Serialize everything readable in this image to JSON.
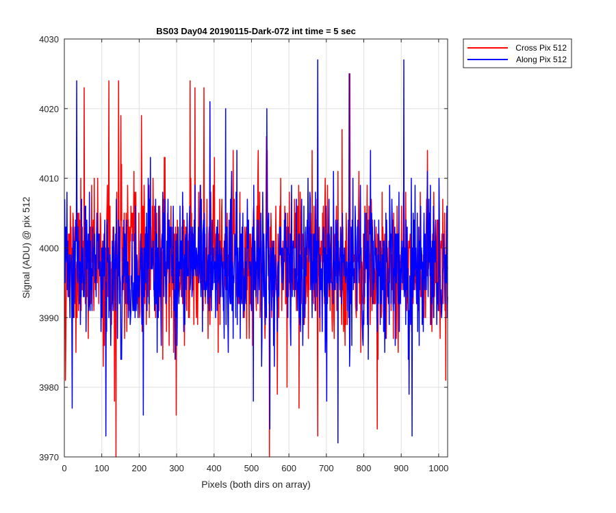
{
  "chart_data": {
    "type": "line",
    "title": "BS03 Day04 20190115-Dark-072 int time = 5 sec",
    "xlabel": "Pixels (both dirs on array)",
    "ylabel": "Signal (ADU) @ pix 512",
    "xlim": [
      0,
      1024
    ],
    "ylim": [
      3970,
      4030
    ],
    "xticks": [
      0,
      100,
      200,
      300,
      400,
      500,
      600,
      700,
      800,
      900,
      1000
    ],
    "yticks": [
      3970,
      3980,
      3990,
      4000,
      4010,
      4020,
      4030
    ],
    "grid": true,
    "legend_position": "outside-top-right",
    "series": [
      {
        "name": "Cross Pix 512",
        "color": "#ff0000",
        "generator": {
          "n": 1024,
          "seed": 11,
          "baseline": 3998,
          "noise_sd": 5.2,
          "min": 3970,
          "max": 4024
        },
        "peaks": [
          [
            0,
            4002
          ],
          [
            2,
            3981
          ],
          [
            30,
            3985
          ],
          [
            52,
            4023
          ],
          [
            118,
            4024
          ],
          [
            133,
            3978
          ],
          [
            137,
            3970
          ],
          [
            144,
            4024
          ],
          [
            150,
            4019
          ],
          [
            205,
            4019
          ],
          [
            298,
            3976
          ],
          [
            335,
            4024
          ],
          [
            348,
            4023
          ],
          [
            372,
            4023
          ],
          [
            400,
            4013
          ],
          [
            450,
            4014
          ],
          [
            547,
            3970
          ],
          [
            568,
            3979
          ],
          [
            626,
            3977
          ],
          [
            676,
            3973
          ],
          [
            741,
            4017
          ],
          [
            762,
            4025
          ],
          [
            835,
            3974
          ],
          [
            1018,
            3981
          ]
        ]
      },
      {
        "name": "Along Pix 512",
        "color": "#0000ff",
        "generator": {
          "n": 1024,
          "seed": 23,
          "baseline": 3997,
          "noise_sd": 5.0,
          "min": 3973,
          "max": 4027
        },
        "peaks": [
          [
            20,
            3977
          ],
          [
            32,
            4024
          ],
          [
            110,
            3973
          ],
          [
            152,
            3984
          ],
          [
            210,
            3976
          ],
          [
            388,
            4021
          ],
          [
            430,
            4020
          ],
          [
            504,
            3978
          ],
          [
            540,
            4020
          ],
          [
            548,
            3974
          ],
          [
            676,
            4027
          ],
          [
            700,
            3978
          ],
          [
            730,
            3972
          ],
          [
            760,
            4025
          ],
          [
            906,
            4027
          ],
          [
            920,
            3979
          ],
          [
            928,
            3973
          ],
          [
            1000,
            4010
          ]
        ]
      }
    ]
  }
}
